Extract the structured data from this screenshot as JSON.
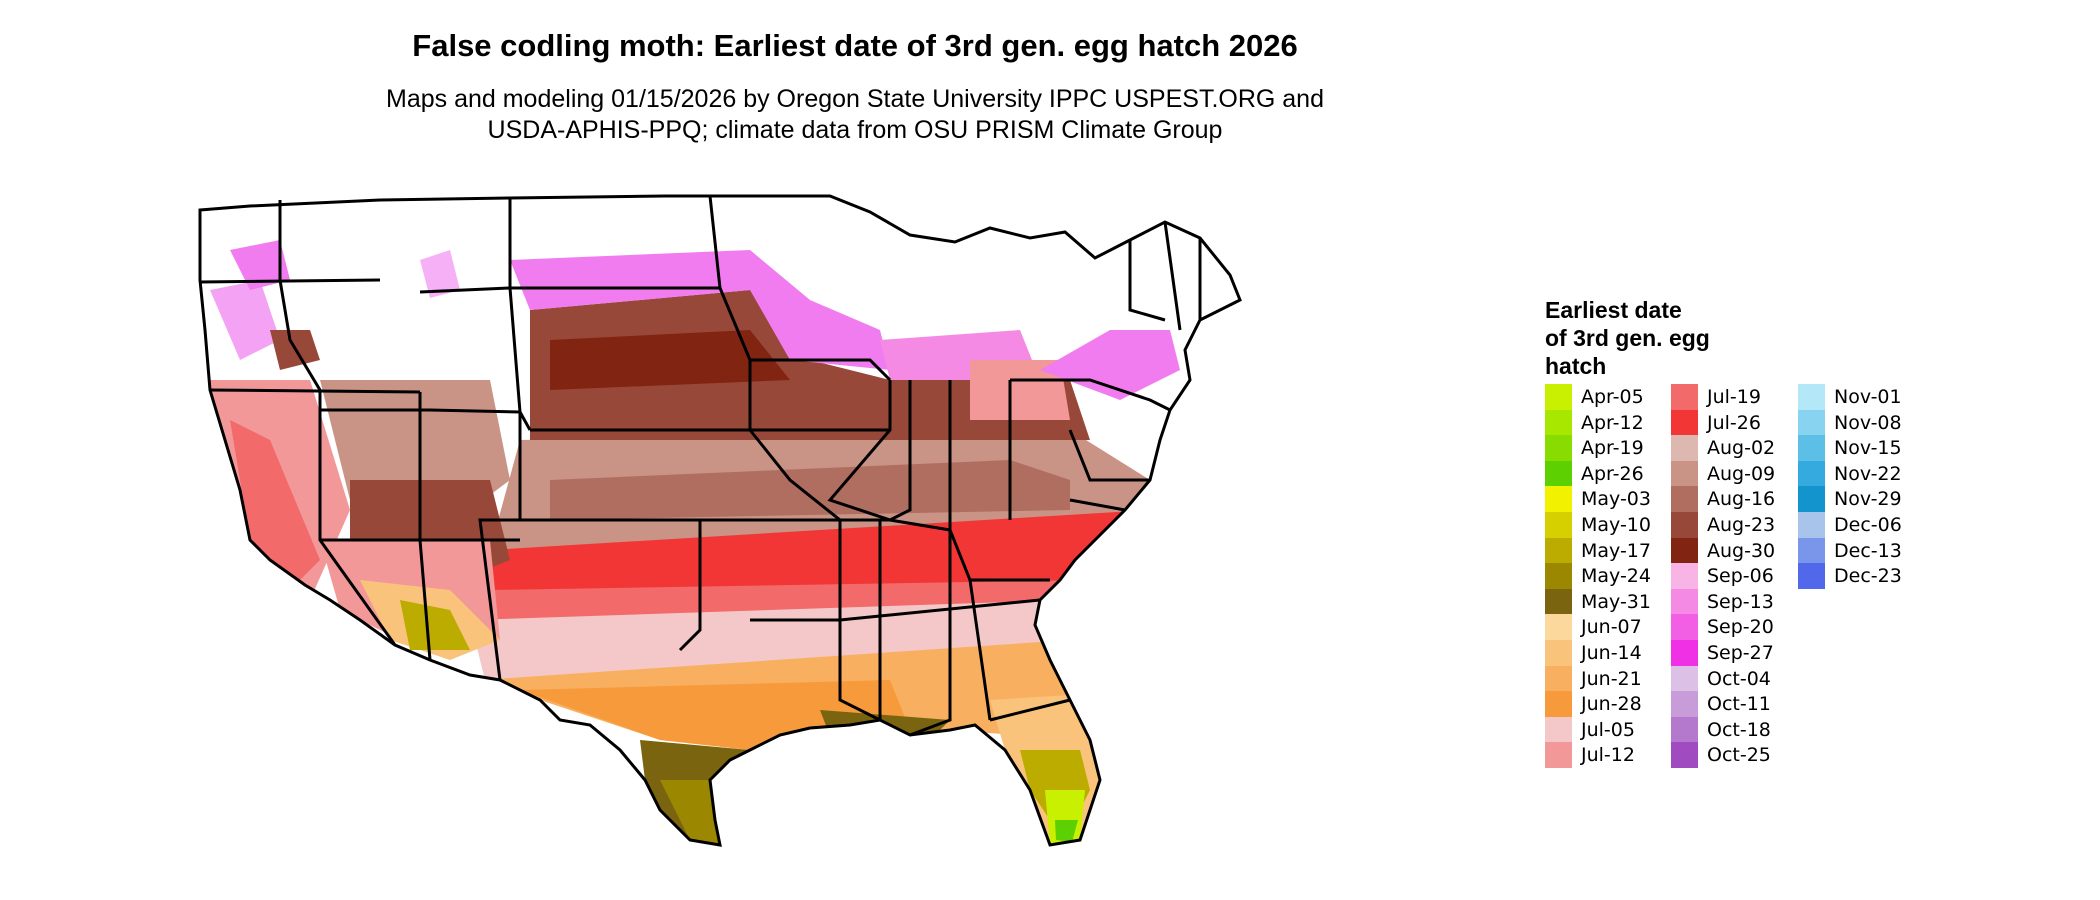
{
  "title": "False codling moth: Earliest date of 3rd gen. egg hatch 2026",
  "subtitle_line1": "Maps and modeling 01/15/2026 by Oregon State University IPPC USPEST.ORG and",
  "subtitle_line2": "USDA-APHIS-PPQ; climate data from OSU PRISM Climate Group",
  "map": {
    "region": "Contiguous United States",
    "colors": {
      "apr": "#c8f000",
      "may_yellow": "#f2f200",
      "olive": "#8a7a10",
      "dark_olive": "#6b5a10",
      "orange_light": "#fbc98a",
      "orange": "#f89e3c",
      "pink_light": "#f4c4c4",
      "salmon": "#f27a7a",
      "red": "#f23232",
      "tan": "#c99486",
      "brown": "#a96050",
      "dark_brown": "#7d2f1f",
      "magenta": "#f07cf0",
      "no_data": "#ffffff",
      "boundary": "#000000"
    }
  },
  "legend": {
    "title": "Earliest date\nof 3rd gen. egg\nhatch",
    "columns": [
      [
        {
          "label": "Apr-05",
          "color": "#c8f000"
        },
        {
          "label": "Apr-12",
          "color": "#a8e800"
        },
        {
          "label": "Apr-19",
          "color": "#88dc00"
        },
        {
          "label": "Apr-26",
          "color": "#5cd000"
        },
        {
          "label": "May-03",
          "color": "#f2f200"
        },
        {
          "label": "May-10",
          "color": "#d6d000"
        },
        {
          "label": "May-17",
          "color": "#bcac00"
        },
        {
          "label": "May-24",
          "color": "#9c8800"
        },
        {
          "label": "May-31",
          "color": "#7a6410"
        },
        {
          "label": "Jun-07",
          "color": "#fcd89c"
        },
        {
          "label": "Jun-14",
          "color": "#fac37c"
        },
        {
          "label": "Jun-21",
          "color": "#f8b060"
        },
        {
          "label": "Jun-28",
          "color": "#f79a3c"
        },
        {
          "label": "Jul-05",
          "color": "#f4c8c8"
        },
        {
          "label": "Jul-12",
          "color": "#f29898"
        }
      ],
      [
        {
          "label": "Jul-19",
          "color": "#f26a6a"
        },
        {
          "label": "Jul-26",
          "color": "#f23636"
        },
        {
          "label": "Aug-02",
          "color": "#dcb8b0"
        },
        {
          "label": "Aug-09",
          "color": "#c99486"
        },
        {
          "label": "Aug-16",
          "color": "#b06e60"
        },
        {
          "label": "Aug-23",
          "color": "#984838"
        },
        {
          "label": "Aug-30",
          "color": "#822412"
        },
        {
          "label": "Sep-06",
          "color": "#f8b4e4"
        },
        {
          "label": "Sep-13",
          "color": "#f58ae4"
        },
        {
          "label": "Sep-20",
          "color": "#f25ee4"
        },
        {
          "label": "Sep-27",
          "color": "#f030e4"
        },
        {
          "label": "Oct-04",
          "color": "#dcc0e6"
        },
        {
          "label": "Oct-11",
          "color": "#c89cd8"
        },
        {
          "label": "Oct-18",
          "color": "#b478cc"
        },
        {
          "label": "Oct-25",
          "color": "#a04cc0"
        }
      ],
      [
        {
          "label": "Nov-01",
          "color": "#b4e8f8"
        },
        {
          "label": "Nov-08",
          "color": "#88d4f0"
        },
        {
          "label": "Nov-15",
          "color": "#5cc0e6"
        },
        {
          "label": "Nov-22",
          "color": "#34aade"
        },
        {
          "label": "Nov-29",
          "color": "#1494cc"
        },
        {
          "label": "Dec-06",
          "color": "#a8c4ea"
        },
        {
          "label": "Dec-13",
          "color": "#7a96ea"
        },
        {
          "label": "Dec-23",
          "color": "#5268ea"
        }
      ]
    ]
  }
}
